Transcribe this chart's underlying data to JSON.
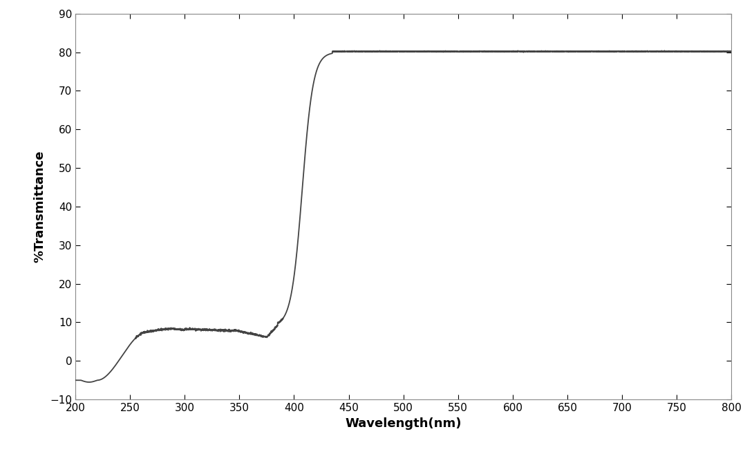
{
  "title": "",
  "xlabel": "Wavelength(nm)",
  "ylabel": "%Transmittance",
  "xlim": [
    200,
    800
  ],
  "ylim": [
    -10,
    90
  ],
  "xticks": [
    200,
    250,
    300,
    350,
    400,
    450,
    500,
    550,
    600,
    650,
    700,
    750,
    800
  ],
  "yticks": [
    -10,
    0,
    10,
    20,
    30,
    40,
    50,
    60,
    70,
    80,
    90
  ],
  "line_color": "#444444",
  "line_width": 1.3,
  "background_color": "#ffffff",
  "xlabel_fontsize": 13,
  "ylabel_fontsize": 13,
  "tick_fontsize": 11
}
